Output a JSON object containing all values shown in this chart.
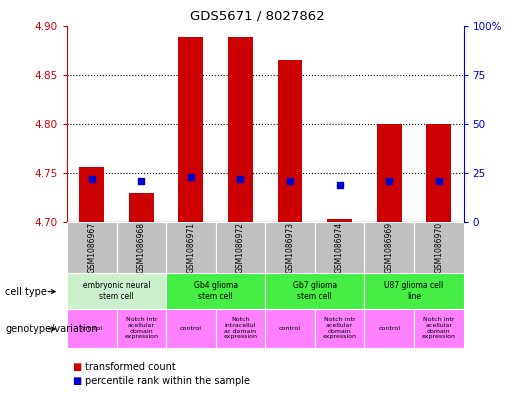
{
  "title": "GDS5671 / 8027862",
  "samples": [
    "GSM1086967",
    "GSM1086968",
    "GSM1086971",
    "GSM1086972",
    "GSM1086973",
    "GSM1086974",
    "GSM1086969",
    "GSM1086970"
  ],
  "transformed_count": [
    4.756,
    4.73,
    4.888,
    4.888,
    4.865,
    4.703,
    4.8,
    4.8
  ],
  "percentile_rank": [
    22,
    21,
    23,
    22,
    21,
    19,
    21,
    21
  ],
  "ylim_left": [
    4.7,
    4.9
  ],
  "ylim_right": [
    0,
    100
  ],
  "yticks_left": [
    4.7,
    4.75,
    4.8,
    4.85,
    4.9
  ],
  "yticks_right": [
    0,
    25,
    50,
    75,
    100
  ],
  "cell_type_groups": [
    {
      "label": "embryonic neural\nstem cell",
      "start": 0,
      "end": 1,
      "color": "#ccf0cc"
    },
    {
      "label": "Gb4 glioma\nstem cell",
      "start": 2,
      "end": 3,
      "color": "#44ee44"
    },
    {
      "label": "Gb7 glioma\nstem cell",
      "start": 4,
      "end": 5,
      "color": "#44ee44"
    },
    {
      "label": "U87 glioma cell\nline",
      "start": 6,
      "end": 7,
      "color": "#44ee44"
    }
  ],
  "genotype_groups": [
    {
      "label": "control",
      "start": 0,
      "end": 0,
      "color": "#ff80ff"
    },
    {
      "label": "Notch intr\nacellular\ndomain\nexpression",
      "start": 1,
      "end": 1,
      "color": "#ff80ff"
    },
    {
      "label": "control",
      "start": 2,
      "end": 2,
      "color": "#ff80ff"
    },
    {
      "label": "Notch\nintracellul\nar domain\nexpression",
      "start": 3,
      "end": 3,
      "color": "#ff80ff"
    },
    {
      "label": "control",
      "start": 4,
      "end": 4,
      "color": "#ff80ff"
    },
    {
      "label": "Notch intr\nacellular\ndomain\nexpression",
      "start": 5,
      "end": 5,
      "color": "#ff80ff"
    },
    {
      "label": "control",
      "start": 6,
      "end": 6,
      "color": "#ff80ff"
    },
    {
      "label": "Notch intr\nacellular\ndomain\nexpression",
      "start": 7,
      "end": 7,
      "color": "#ff80ff"
    }
  ],
  "bar_color": "#cc0000",
  "dot_color": "#0000cc",
  "bar_width": 0.5,
  "dot_size": 25,
  "axis_color_left": "#cc0000",
  "axis_color_right": "#0000cc",
  "grid_color": "#000000",
  "sample_bg_color": "#c0c0c0",
  "right_tick_labels": [
    "0",
    "25",
    "50",
    "75",
    "100%"
  ]
}
